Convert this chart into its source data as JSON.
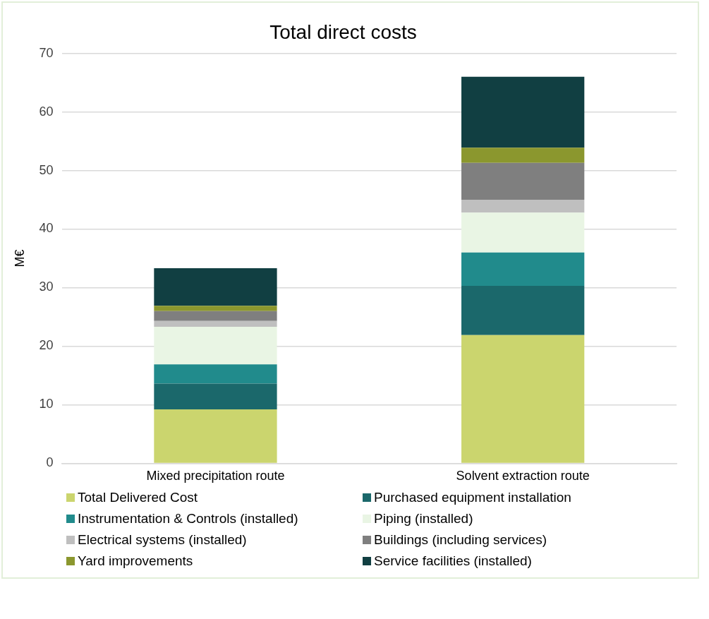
{
  "chart_data": {
    "type": "bar",
    "title": "Total direct costs",
    "ylabel": "M€",
    "categories": [
      "Mixed precipitation route",
      "Solvent extraction route"
    ],
    "stacked": true,
    "ylim": [
      0,
      70
    ],
    "yticks": [
      0,
      10,
      20,
      30,
      40,
      50,
      60,
      70
    ],
    "grid": "y",
    "legend": "bottom",
    "series": [
      {
        "name": "Total Delivered Cost",
        "color": "#cbd56e",
        "values": [
          9.2,
          21.9
        ]
      },
      {
        "name": "Purchased equipment installation",
        "color": "#1b686b",
        "values": [
          4.4,
          8.4
        ]
      },
      {
        "name": "Instrumentation & Controls (installed)",
        "color": "#218b8c",
        "values": [
          3.3,
          5.7
        ]
      },
      {
        "name": "Piping (installed)",
        "color": "#e9f5e4",
        "values": [
          6.4,
          6.8
        ]
      },
      {
        "name": "Electrical systems (installed)",
        "color": "#bfbfbf",
        "values": [
          1.0,
          2.2
        ]
      },
      {
        "name": "Buildings (including services)",
        "color": "#7f7f7f",
        "values": [
          1.7,
          6.3
        ]
      },
      {
        "name": "Yard improvements",
        "color": "#8b972e",
        "values": [
          0.9,
          2.6
        ]
      },
      {
        "name": "Service facilities (installed)",
        "color": "#113f42",
        "values": [
          6.4,
          12.1
        ]
      }
    ]
  }
}
